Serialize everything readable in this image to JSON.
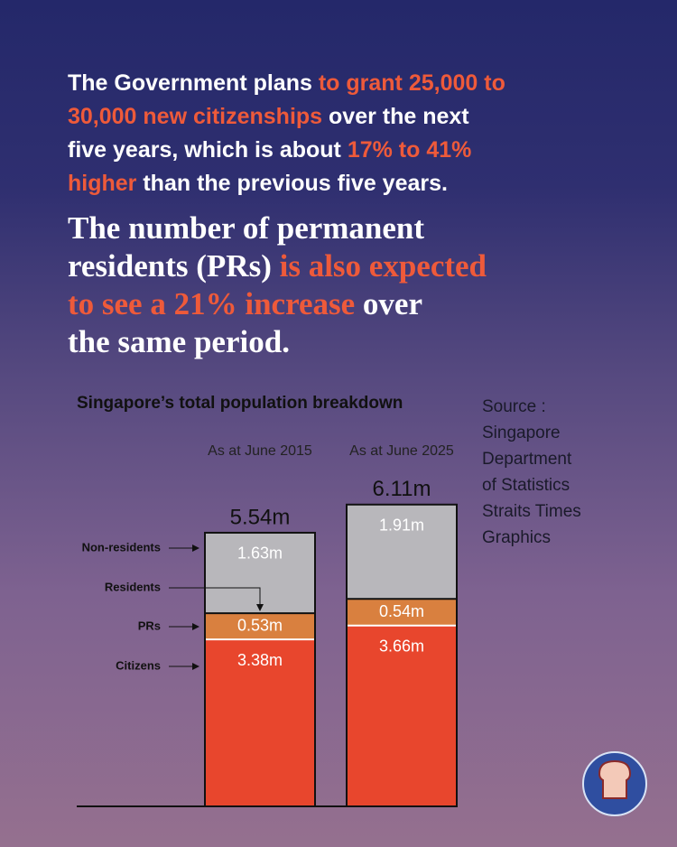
{
  "headline": [
    [
      {
        "text": "The Government plans ",
        "color": "#ffffff"
      },
      {
        "text": "to grant 25,000 to",
        "color": "#ee5a3a"
      }
    ],
    [
      {
        "text": "30,000 new citizenships",
        "color": "#ee5a3a"
      },
      {
        "text": " over the next",
        "color": "#ffffff"
      }
    ],
    [
      {
        "text": "five years, which is about ",
        "color": "#ffffff"
      },
      {
        "text": "17% to 41%",
        "color": "#ee5a3a"
      }
    ],
    [
      {
        "text": "higher",
        "color": "#ee5a3a"
      },
      {
        "text": " than the previous five years.",
        "color": "#ffffff"
      }
    ]
  ],
  "subhead": [
    [
      {
        "text": "The number of permanent",
        "color": "#ffffff"
      }
    ],
    [
      {
        "text": "residents (PRs) ",
        "color": "#ffffff"
      },
      {
        "text": "is also expected",
        "color": "#ee5a3a"
      }
    ],
    [
      {
        "text": "to see a 21% increase",
        "color": "#ee5a3a"
      },
      {
        "text": " over",
        "color": "#ffffff"
      }
    ],
    [
      {
        "text": "the same period.",
        "color": "#ffffff"
      }
    ]
  ],
  "source": [
    "Source :",
    "Singapore",
    "Department",
    "of Statistics",
    "Straits Times",
    "Graphics"
  ],
  "chart_data": {
    "type": "stacked-bar",
    "title": "Singapore’s total population breakdown",
    "categories": [
      "As at June 2015",
      "As at June 2025"
    ],
    "series": [
      {
        "name": "Citizens",
        "color": "#e8462d",
        "values": [
          3.38,
          3.66
        ],
        "value_labels": [
          "3.38m",
          "3.66m"
        ]
      },
      {
        "name": "PRs",
        "color": "#d9803f",
        "values": [
          0.53,
          0.54
        ],
        "value_labels": [
          "0.53m",
          "0.54m"
        ]
      },
      {
        "name": "Non-residents",
        "color": "#b8b7bb",
        "values": [
          1.63,
          1.91
        ],
        "value_labels": [
          "1.63m",
          "1.91m"
        ]
      }
    ],
    "totals": [
      5.54,
      6.11
    ],
    "total_labels": [
      "5.54m",
      "6.11m"
    ],
    "annotation": "Residents"
  }
}
